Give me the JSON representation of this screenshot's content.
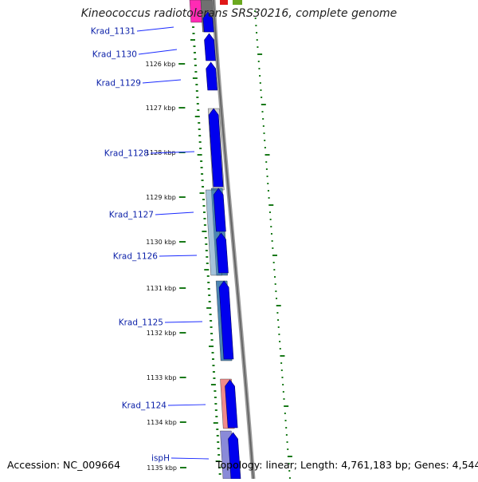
{
  "title": "Kineococcus radiotolerans SRS30216, complete genome",
  "accession": "Accession: NC_009664",
  "topology": "Topology: linear; Length: 4,761,183 bp; Genes: 4,544",
  "ruler": [
    "1126 kbp",
    "1127 kbp",
    "1128 kbp",
    "1129 kbp",
    "1130 kbp",
    "1131 kbp",
    "1132 kbp",
    "1133 kbp",
    "1134 kbp",
    "1135 kbp"
  ],
  "genes": [
    {
      "label": "Krad_1131",
      "color": "#ff2bb4"
    },
    {
      "label": "Krad_1130",
      "color": "#707070"
    },
    {
      "label": "Krad_1129",
      "color": "#1a1aff"
    },
    {
      "label": "Krad_1128",
      "color": "#cfcfcf"
    },
    {
      "label": "Krad_1127",
      "color": "#4c85b3"
    },
    {
      "label": "Krad_1126",
      "color": "#4c85b3"
    },
    {
      "label": "Krad_1125",
      "color": "#4c85b3"
    },
    {
      "label": "Krad_1124",
      "color": "#f08a8a"
    },
    {
      "label": "ispH",
      "color": "#8a8ad8"
    }
  ],
  "colors": {
    "forward_strand": "#0000ee",
    "backbone": "#888888",
    "ticks": "#1a7a1a",
    "label_text": "#0a1fa8",
    "leader_line": "#1a2aff"
  }
}
